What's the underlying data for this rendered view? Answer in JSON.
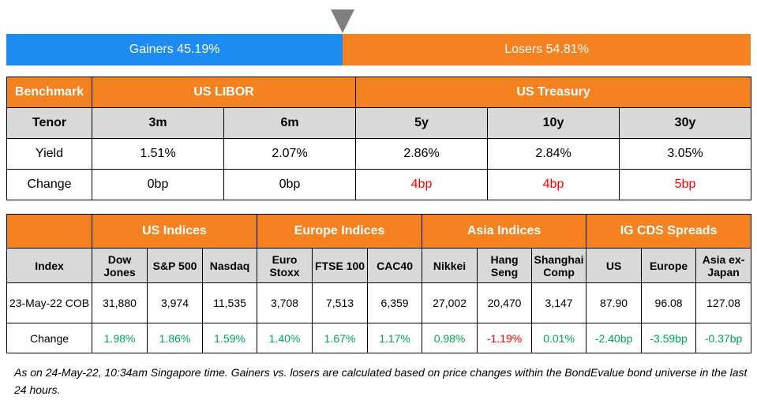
{
  "market_bar": {
    "gainers_label": "Gainers 45.19%",
    "losers_label": "Losers 54.81%",
    "gainers_fraction": 0.4519,
    "pointer_icon": "triangle-down-icon"
  },
  "rates_table": {
    "benchmark_label": "Benchmark",
    "us_libor_label": "US LIBOR",
    "us_treasury_label": "US Treasury",
    "tenor_label": "Tenor",
    "tenors": [
      "3m",
      "6m",
      "5y",
      "10y",
      "30y"
    ],
    "yield_label": "Yield",
    "yields": [
      "1.51%",
      "2.07%",
      "2.86%",
      "2.84%",
      "3.05%"
    ],
    "change_label": "Change",
    "changes": [
      "0bp",
      "0bp",
      "4bp",
      "4bp",
      "5bp"
    ]
  },
  "indices_table": {
    "groups": [
      "US Indices",
      "Europe Indices",
      "Asia Indices",
      "IG CDS Spreads"
    ],
    "index_label": "Index",
    "names": [
      [
        "Dow",
        "Jones"
      ],
      [
        "S&P 500"
      ],
      [
        "Nasdaq"
      ],
      [
        "Euro",
        "Stoxx"
      ],
      [
        "FTSE 100"
      ],
      [
        "CAC40"
      ],
      [
        "Nikkei"
      ],
      [
        "Hang",
        "Seng"
      ],
      [
        "Shanghai",
        "Comp"
      ],
      [
        "US"
      ],
      [
        "Europe"
      ],
      [
        "Asia ex-",
        "Japan"
      ]
    ],
    "date_label": "23-May-22 COB",
    "values": [
      "31,880",
      "3,974",
      "11,535",
      "3,708",
      "7,513",
      "6,359",
      "27,002",
      "20,470",
      "3,147",
      "87.90",
      "96.08",
      "127.08"
    ],
    "change_label": "Change",
    "changes": [
      "1.98%",
      "1.86%",
      "1.59%",
      "1.40%",
      "1.67%",
      "1.17%",
      "0.98%",
      "-1.19%",
      "0.01%",
      "-2.40bp",
      "-3.59bp",
      "-0.37bp"
    ]
  },
  "colors": {
    "gainers": "#1e8bf2",
    "losers": "#f58220",
    "header": "#f58220",
    "subheader": "#d9d9d9",
    "positive_change": "#00a651",
    "negative_change": "#ff0000"
  },
  "footnote": "As on 24-May-22, 10:34am Singapore time. Gainers vs. losers are calculated based on price changes within the BondEvalue bond universe in the last 24 hours."
}
